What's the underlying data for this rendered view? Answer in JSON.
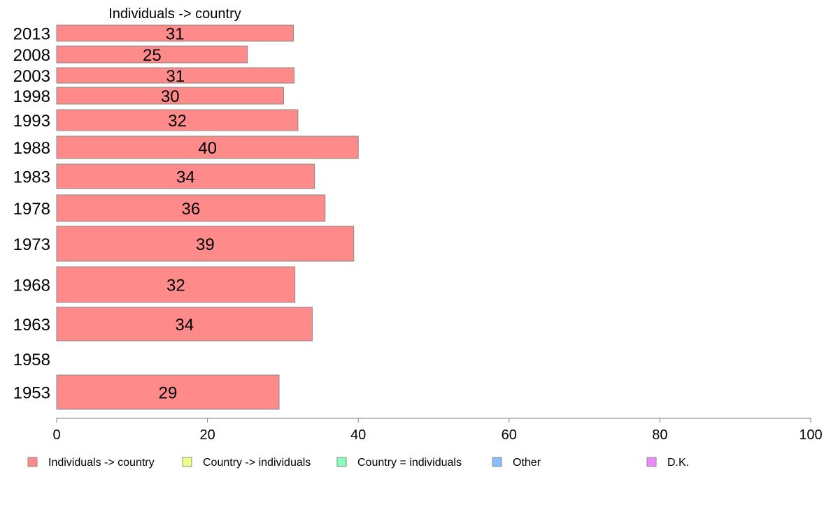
{
  "chart_data": {
    "type": "bar",
    "orientation": "horizontal",
    "title": "Individuals -> country",
    "categories": [
      "2013",
      "2008",
      "2003",
      "1998",
      "1993",
      "1988",
      "1983",
      "1978",
      "1973",
      "1968",
      "1963",
      "1958",
      "1953"
    ],
    "series": [
      {
        "name": "Individuals -> country",
        "color": "#ff8a8a",
        "values": [
          31.4,
          25.3,
          31.5,
          30.1,
          32.0,
          40.0,
          34.2,
          35.6,
          39.4,
          31.6,
          33.9,
          null,
          29.5
        ],
        "labels": [
          "31",
          "25",
          "31",
          "30",
          "32",
          "40",
          "34",
          "36",
          "39",
          "32",
          "34",
          "",
          "29"
        ]
      }
    ],
    "xlim": [
      0,
      100
    ],
    "xticks": [
      "0",
      "20",
      "40",
      "60",
      "80",
      "100"
    ],
    "grid": false,
    "legend": {
      "placement": "bottom",
      "entries": [
        {
          "label": "Individuals -> country",
          "color": "#ff8a8a"
        },
        {
          "label": "Country -> individuals",
          "color": "#eeff88"
        },
        {
          "label": "Country = individuals",
          "color": "#88ffbb"
        },
        {
          "label": "Other",
          "color": "#88bbff"
        },
        {
          "label": "D.K.",
          "color": "#ee88ff"
        }
      ]
    }
  }
}
